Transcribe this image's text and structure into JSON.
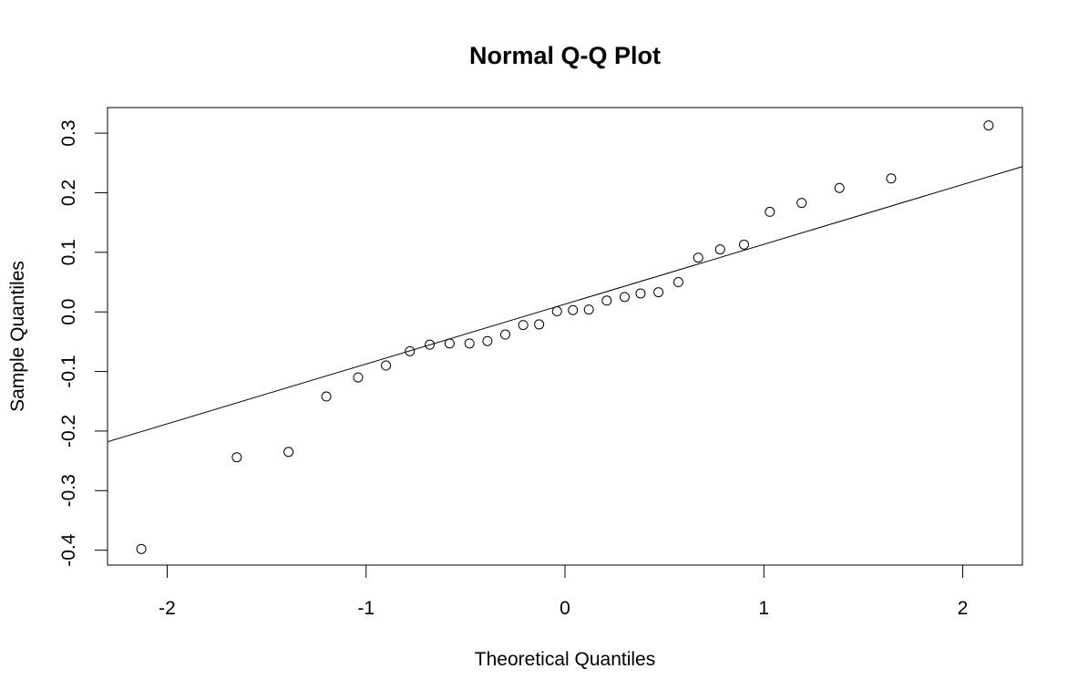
{
  "chart_data": {
    "type": "scatter",
    "title": "Normal Q-Q Plot",
    "xlabel": "Theoretical Quantiles",
    "ylabel": "Sample Quantiles",
    "xlim": [
      -2.3,
      2.3
    ],
    "ylim": [
      -0.425,
      0.343
    ],
    "x_ticks": [
      -2,
      -1,
      0,
      1,
      2
    ],
    "x_tick_labels": [
      "-2",
      "-1",
      "0",
      "1",
      "2"
    ],
    "y_ticks": [
      -0.4,
      -0.3,
      -0.2,
      -0.1,
      0.0,
      0.1,
      0.2,
      0.3
    ],
    "y_tick_labels": [
      "-0.4",
      "-0.3",
      "-0.2",
      "-0.1",
      "0.0",
      "0.1",
      "0.2",
      "0.3"
    ],
    "grid": false,
    "legend": null,
    "marker": "open-circle",
    "points": {
      "x": [
        -2.13,
        -1.65,
        -1.39,
        -1.2,
        -1.04,
        -0.9,
        -0.78,
        -0.68,
        -0.58,
        -0.48,
        -0.39,
        -0.3,
        -0.21,
        -0.13,
        -0.04,
        0.04,
        0.12,
        0.21,
        0.3,
        0.38,
        0.47,
        0.57,
        0.67,
        0.78,
        0.9,
        1.03,
        1.19,
        1.38,
        1.64,
        2.13
      ],
      "y": [
        -0.398,
        -0.244,
        -0.235,
        -0.142,
        -0.11,
        -0.09,
        -0.066,
        -0.055,
        -0.053,
        -0.053,
        -0.049,
        -0.038,
        -0.022,
        -0.021,
        0.001,
        0.003,
        0.004,
        0.019,
        0.025,
        0.031,
        0.033,
        0.05,
        0.091,
        0.105,
        0.113,
        0.168,
        0.183,
        0.208,
        0.224,
        0.313
      ]
    },
    "reference_line": {
      "x": [
        -2.3,
        2.3
      ],
      "y": [
        -0.218,
        0.244
      ]
    }
  },
  "colors": {
    "background": "#ffffff",
    "foreground": "#000000"
  }
}
